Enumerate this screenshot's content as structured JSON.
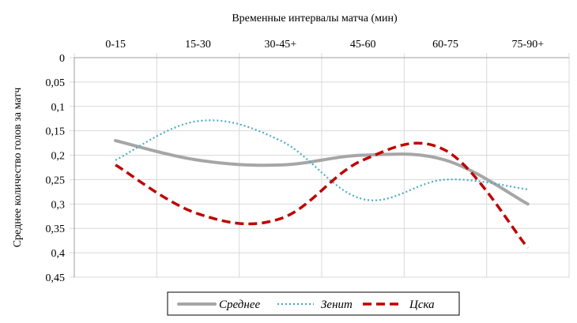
{
  "chart_data": {
    "type": "line",
    "title": "Временные  интервалы матча (мин)",
    "ylabel": "Среднее количество голов за матч",
    "xlabel": "",
    "categories": [
      "0-15",
      "15-30",
      "30-45+",
      "45-60",
      "60-75",
      "75-90+"
    ],
    "yticks": [
      "0",
      "0,05",
      "0,1",
      "0,15",
      "0,2",
      "0,25",
      "0,3",
      "0,35",
      "0,4",
      "0,45"
    ],
    "ylim": [
      0,
      0.45
    ],
    "y_inverted": true,
    "x_axis_position": "top",
    "grid": true,
    "legend_position": "bottom",
    "series": [
      {
        "name": "Среднее",
        "values": [
          0.17,
          0.21,
          0.22,
          0.2,
          0.21,
          0.3
        ],
        "color": "#a6a6a6",
        "style": "solid"
      },
      {
        "name": "Зенит",
        "values": [
          0.21,
          0.13,
          0.17,
          0.29,
          0.25,
          0.27
        ],
        "color": "#4bacc6",
        "style": "dotted"
      },
      {
        "name": "Цска",
        "values": [
          0.22,
          0.32,
          0.33,
          0.21,
          0.19,
          0.39
        ],
        "color": "#c00000",
        "style": "dashed"
      }
    ]
  }
}
